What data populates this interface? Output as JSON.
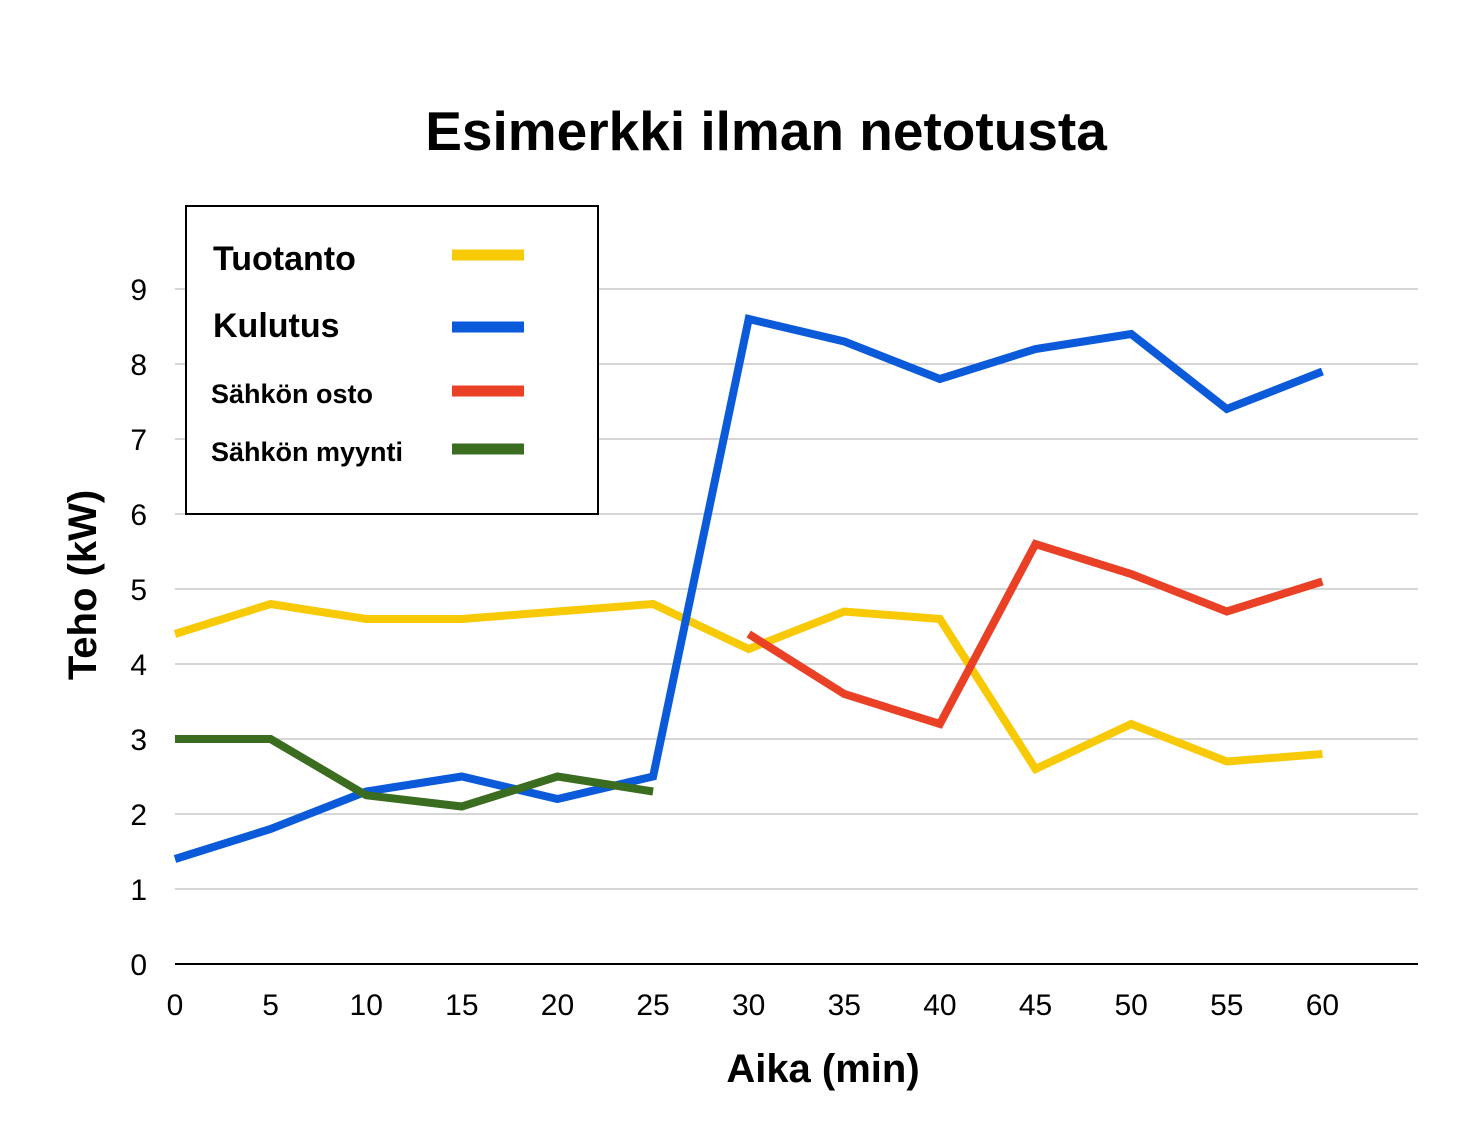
{
  "chart_data": {
    "type": "line",
    "title": "Esimerkki ilman netotusta",
    "xlabel": "Aika (min)",
    "ylabel": "Teho (kW)",
    "x": [
      0,
      5,
      10,
      15,
      20,
      25,
      30,
      35,
      40,
      45,
      50,
      55,
      60
    ],
    "xlim": [
      0,
      65
    ],
    "ylim": [
      0,
      9
    ],
    "x_ticks": [
      "0",
      "5",
      "10",
      "15",
      "20",
      "25",
      "30",
      "35",
      "40",
      "45",
      "50",
      "55",
      "60"
    ],
    "y_ticks": [
      "0",
      "1",
      "2",
      "3",
      "4",
      "5",
      "6",
      "7",
      "8",
      "9"
    ],
    "grid": true,
    "legend_position": "top-left",
    "series": [
      {
        "name": "Tuotanto",
        "color": "#f7ca05",
        "values": [
          4.4,
          4.8,
          4.6,
          4.6,
          4.7,
          4.8,
          4.2,
          4.7,
          4.6,
          2.6,
          3.2,
          2.7,
          2.8
        ]
      },
      {
        "name": "Kulutus",
        "color": "#0b5ad9",
        "values": [
          1.4,
          1.8,
          2.3,
          2.5,
          2.2,
          2.5,
          8.6,
          8.3,
          7.8,
          8.2,
          8.4,
          7.4,
          7.9
        ]
      },
      {
        "name": "Sähkön osto",
        "color": "#ea4025",
        "values": [
          null,
          null,
          null,
          null,
          null,
          null,
          4.4,
          3.6,
          3.2,
          5.6,
          5.2,
          4.7,
          5.1
        ]
      },
      {
        "name": "Sähkön myynti",
        "color": "#3a6d1f",
        "values": [
          3.0,
          3.0,
          2.25,
          2.1,
          2.5,
          2.3,
          null,
          null,
          null,
          null,
          null,
          null,
          null
        ]
      }
    ]
  }
}
